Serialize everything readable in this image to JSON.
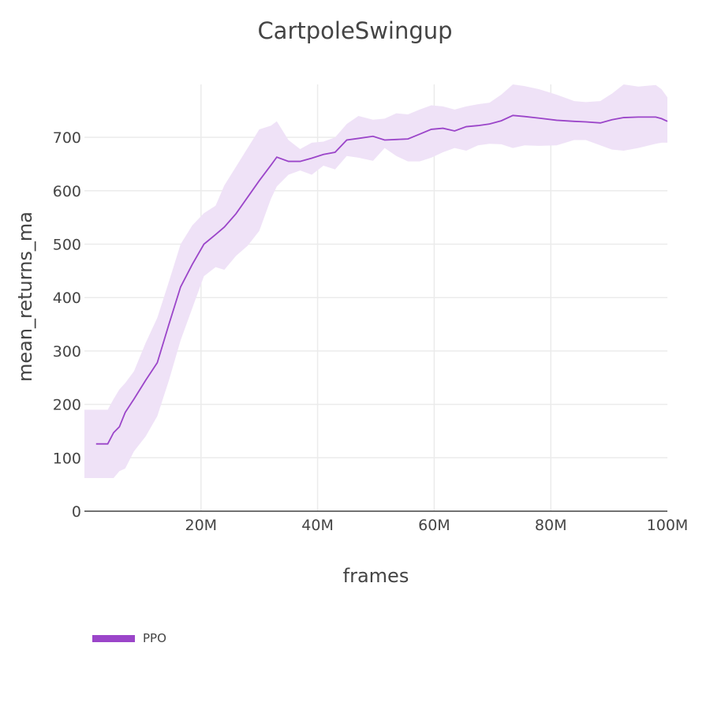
{
  "chart_data": {
    "type": "line",
    "title": "CartpoleSwingup",
    "xlabel": "frames",
    "ylabel": "mean_returns_ma",
    "xlim": [
      0,
      100000000
    ],
    "ylim": [
      0,
      790
    ],
    "x_ticks": [
      {
        "value": 20000000,
        "label": "20M"
      },
      {
        "value": 40000000,
        "label": "40M"
      },
      {
        "value": 60000000,
        "label": "60M"
      },
      {
        "value": 80000000,
        "label": "80M"
      },
      {
        "value": 100000000,
        "label": "100M"
      }
    ],
    "y_ticks": [
      {
        "value": 0,
        "label": "0"
      },
      {
        "value": 100,
        "label": "100"
      },
      {
        "value": 200,
        "label": "200"
      },
      {
        "value": 300,
        "label": "300"
      },
      {
        "value": 400,
        "label": "400"
      },
      {
        "value": 500,
        "label": "500"
      },
      {
        "value": 600,
        "label": "600"
      },
      {
        "value": 700,
        "label": "700"
      }
    ],
    "grid": true,
    "legend_position": "bottom-left",
    "series": [
      {
        "name": "PPO",
        "color": "#9b45c9",
        "band_color": "#efe2f7",
        "x": [
          2,
          4,
          5,
          6,
          7,
          8.5,
          10.5,
          12.5,
          14.5,
          16.5,
          18.5,
          20.5,
          22.5,
          24,
          26,
          28,
          30,
          32,
          33,
          35,
          37,
          39,
          41,
          43,
          45,
          47,
          49.5,
          51.5,
          53.5,
          55.5,
          57.5,
          59.5,
          61.5,
          63.5,
          65.5,
          67.5,
          69.5,
          71.5,
          73.5,
          75.5,
          78,
          81,
          84,
          86,
          88.5,
          90.5,
          92.5,
          95,
          98,
          99,
          100
        ],
        "y": [
          126,
          126,
          147,
          158,
          185,
          210,
          245,
          278,
          350,
          420,
          462,
          500,
          518,
          532,
          557,
          588,
          619,
          648,
          663,
          655,
          655,
          661,
          668,
          672,
          695,
          698,
          702,
          695,
          696,
          697,
          706,
          715,
          717,
          712,
          720,
          722,
          725,
          731,
          741,
          739,
          736,
          732,
          730,
          729,
          727,
          733,
          737,
          738,
          738,
          735,
          730
        ],
        "upper": [
          190,
          190,
          210,
          228,
          240,
          262,
          315,
          362,
          430,
          500,
          535,
          558,
          572,
          610,
          645,
          680,
          715,
          722,
          730,
          695,
          678,
          690,
          692,
          700,
          725,
          740,
          733,
          735,
          745,
          743,
          752,
          760,
          758,
          752,
          758,
          762,
          765,
          780,
          800,
          796,
          790,
          780,
          768,
          766,
          768,
          782,
          800,
          795,
          798,
          790,
          775
        ],
        "lower": [
          62,
          62,
          62,
          75,
          80,
          112,
          140,
          178,
          245,
          320,
          380,
          440,
          457,
          452,
          478,
          497,
          525,
          585,
          608,
          630,
          638,
          630,
          647,
          640,
          665,
          662,
          656,
          680,
          665,
          655,
          655,
          662,
          672,
          680,
          675,
          685,
          688,
          687,
          680,
          685,
          684,
          685,
          695,
          695,
          685,
          677,
          675,
          680,
          688,
          690,
          690
        ]
      }
    ]
  },
  "legend": {
    "items": [
      {
        "label": "PPO",
        "color": "#9b45c9"
      }
    ]
  }
}
